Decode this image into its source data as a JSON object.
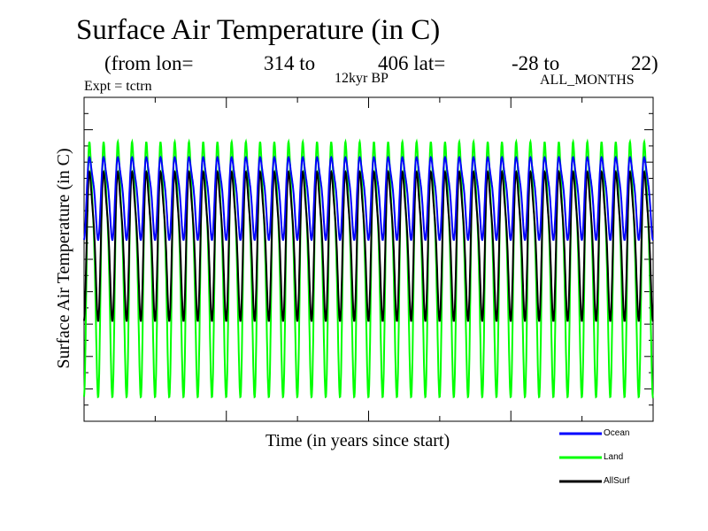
{
  "title": "Surface Air Temperature (in C)",
  "subtitle": {
    "from_lon": "(from lon=",
    "lon1": "314 to",
    "lon2_lat": "406 lat=",
    "lat1": "-28 to",
    "lat2": "22)"
  },
  "period": "12kyr BP",
  "experiment": "Expt = tctrn",
  "months": "ALL_MONTHS",
  "chart_data": {
    "type": "line",
    "title": "Surface Air Temperature (in C)",
    "xlabel": "Time (in years since start)",
    "ylabel": "Surface Air Temperature (in C)",
    "cycles": 40,
    "xlim": [
      0,
      40
    ],
    "ylim": [
      15,
      35
    ],
    "x_tick_labels": [],
    "y_tick_labels": [],
    "series": [
      {
        "name": "Ocean",
        "color": "#0000ff",
        "min": 26.2,
        "max": 31.8
      },
      {
        "name": "Land",
        "color": "#00ff00",
        "min": 16.5,
        "max": 33.8
      },
      {
        "name": "AllSurf",
        "color": "#000000",
        "min": 21.2,
        "max": 31.3
      }
    ]
  },
  "legend": [
    {
      "label": "Ocean",
      "color": "#0000ff"
    },
    {
      "label": "Land",
      "color": "#00ff00"
    },
    {
      "label": "AllSurf",
      "color": "#000000"
    }
  ]
}
